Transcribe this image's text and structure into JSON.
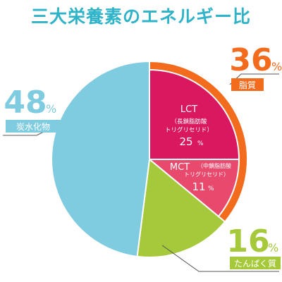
{
  "title": "三大栄養素のエネルギー比",
  "colors": {
    "title": "#2fb3c8",
    "fat_outer": "#f36b1c",
    "lct": "#d9185f",
    "mct": "#e84a6e",
    "protein": "#a5c93a",
    "carbs": "#7fcbe0",
    "leader": "#555555"
  },
  "chart_data": {
    "type": "pie",
    "title": "三大栄養素のエネルギー比",
    "legend": "none",
    "slices": [
      {
        "name": "脂質",
        "value": 36,
        "percent_text": "36",
        "unit": "%"
      },
      {
        "name": "たんぱく質",
        "value": 16,
        "percent_text": "16",
        "unit": "%"
      },
      {
        "name": "炭水化物",
        "value": 48,
        "percent_text": "48",
        "unit": "%"
      }
    ],
    "sub_slices": [
      {
        "parent": "脂質",
        "name": "LCT",
        "desc_line1": "（長鎖脂肪酸",
        "desc_line2": "トリグリセリド）",
        "value": 25,
        "percent_text": "25",
        "unit": "%"
      },
      {
        "parent": "脂質",
        "name": "MCT",
        "desc_line1": "（中鎖脂肪酸",
        "desc_line2": "トリグリセリド）",
        "value": 11,
        "percent_text": "11",
        "unit": "%"
      }
    ]
  }
}
